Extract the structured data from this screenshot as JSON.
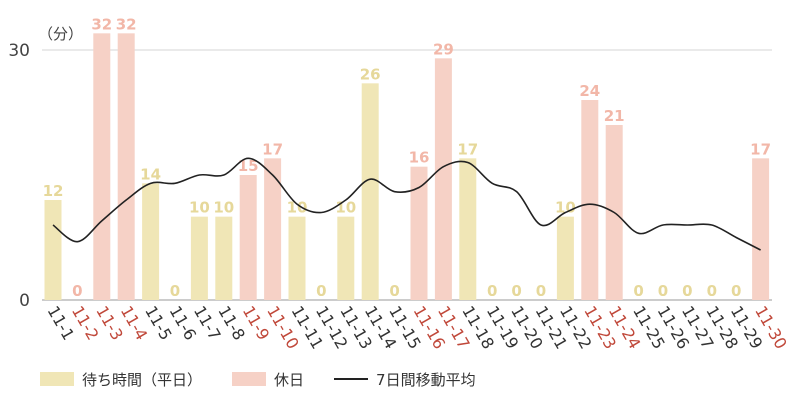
{
  "chart_data": {
    "type": "bar",
    "unit_label": "（分）",
    "categories": [
      "11-1",
      "11-2",
      "11-3",
      "11-4",
      "11-5",
      "11-6",
      "11-7",
      "11-8",
      "11-9",
      "11-10",
      "11-11",
      "11-12",
      "11-13",
      "11-14",
      "11-15",
      "11-16",
      "11-17",
      "11-18",
      "11-19",
      "11-20",
      "11-21",
      "11-22",
      "11-23",
      "11-24",
      "11-25",
      "11-26",
      "11-27",
      "11-28",
      "11-29",
      "11-30"
    ],
    "holiday": [
      false,
      true,
      true,
      true,
      false,
      false,
      false,
      false,
      true,
      true,
      false,
      false,
      false,
      false,
      false,
      true,
      true,
      false,
      false,
      false,
      false,
      false,
      true,
      true,
      false,
      false,
      false,
      false,
      false,
      true
    ],
    "values": [
      12,
      0,
      32,
      32,
      14,
      0,
      10,
      10,
      15,
      17,
      10,
      0,
      10,
      26,
      0,
      16,
      29,
      17,
      0,
      0,
      0,
      10,
      24,
      21,
      0,
      0,
      0,
      0,
      0,
      17
    ],
    "moving_average": [
      9,
      7,
      9.5,
      12,
      14,
      14,
      15,
      15,
      17,
      15,
      11.5,
      10.5,
      12,
      14.5,
      13,
      13.5,
      16,
      16.5,
      14,
      13,
      9,
      10.5,
      11.5,
      10.5,
      8,
      9,
      9,
      9,
      7.5,
      6
    ],
    "yticks": [
      0,
      30
    ],
    "ylim": [
      0,
      36
    ],
    "gridlines": [
      30
    ],
    "legend": [
      {
        "label": "待ち時間（平日）",
        "color": "#f0e6b6",
        "kind": "box"
      },
      {
        "label": "休日",
        "color": "#f6d1c6",
        "kind": "box"
      },
      {
        "label": "7日間移動平均",
        "color": "#222222",
        "kind": "line"
      }
    ],
    "colors": {
      "weekday_bar": "#f0e6b6",
      "holiday_bar": "#f6d1c6",
      "weekday_value": "#e6d89a",
      "holiday_value": "#f2b7a8",
      "weekday_tick": "#333333",
      "holiday_tick": "#c0483a",
      "line": "#222222",
      "grid": "#d6d6d6"
    }
  }
}
